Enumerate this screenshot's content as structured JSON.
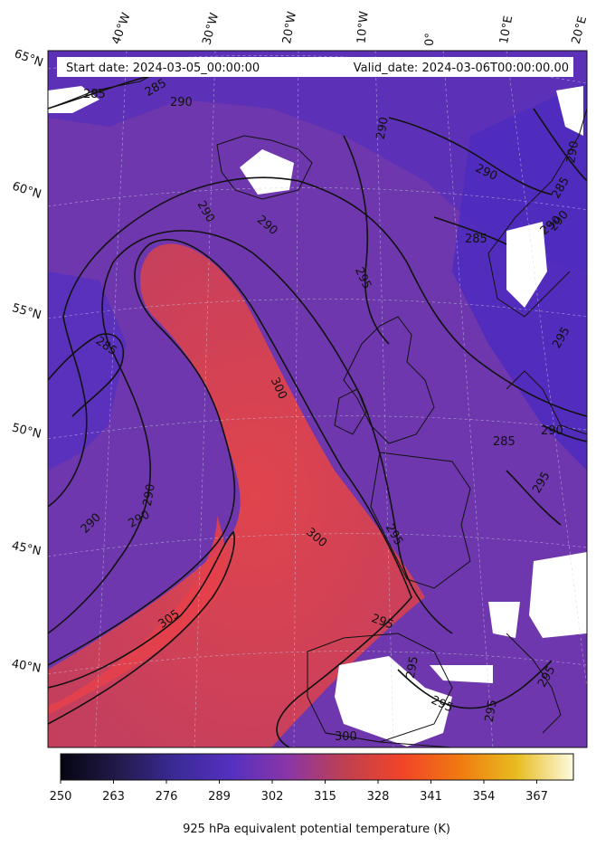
{
  "header": {
    "start_date": "Start date: 2024-03-05_00:00:00",
    "valid_date": "Valid_date: 2024-03-06T00:00:00.00"
  },
  "graticule": {
    "longitudes": [
      "40°W",
      "30°W",
      "20°W",
      "10°W",
      "0°",
      "10°E",
      "20°E"
    ],
    "latitudes": [
      "65°N",
      "60°N",
      "55°N",
      "50°N",
      "45°N",
      "40°N"
    ]
  },
  "contour_levels": [
    "285",
    "290",
    "295",
    "300",
    "305"
  ],
  "contour_labels": [
    "285",
    "290",
    "285",
    "285",
    "290",
    "290",
    "290",
    "290",
    "295",
    "285",
    "285",
    "290",
    "300",
    "285",
    "290",
    "290",
    "290",
    "300",
    "295",
    "295",
    "295",
    "295",
    "295",
    "305",
    "295",
    "300",
    "290",
    "295",
    "290",
    "290",
    "295"
  ],
  "colorbar": {
    "ticks": [
      "250",
      "263",
      "276",
      "289",
      "302",
      "315",
      "328",
      "341",
      "354",
      "367"
    ],
    "min": 250,
    "max": 376,
    "label": "925 hPa equivalent potential temperature (K)",
    "colormap": [
      "#050510",
      "#221a4a",
      "#3a2a96",
      "#5530c0",
      "#8a36a6",
      "#c0404f",
      "#f24428",
      "#f07a10",
      "#e8bc20",
      "#fdfbe0"
    ]
  },
  "colors": {
    "background_field": "#6a35b0",
    "warm_tongue": "#d04060",
    "cold_band": "#4a2cba",
    "contour": "#111111",
    "missing": "#ffffff"
  }
}
